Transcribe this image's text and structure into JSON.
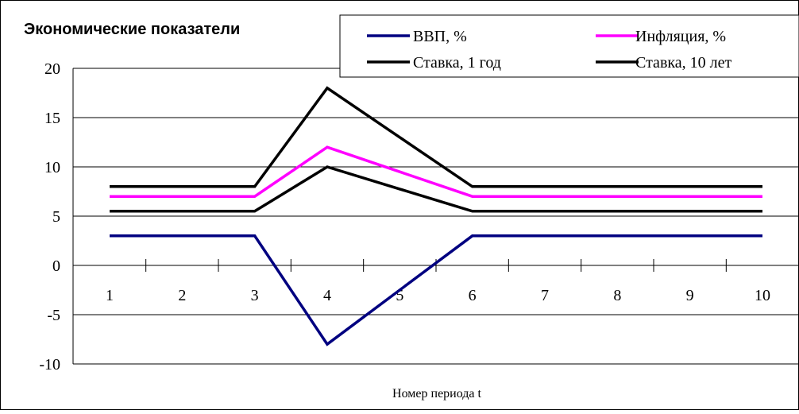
{
  "chart_data": {
    "type": "line",
    "title": "Экономические показатели",
    "xlabel": "Номер периода t",
    "ylabel": "",
    "categories": [
      "1",
      "2",
      "3",
      "4",
      "5",
      "6",
      "7",
      "8",
      "9",
      "10"
    ],
    "ylim": [
      -10,
      20
    ],
    "yticks": [
      "20",
      "15",
      "10",
      "5",
      "0",
      "-5",
      "-10"
    ],
    "grid": true,
    "legend_position": "top-right",
    "series": [
      {
        "name": "ВВП, %",
        "color": "#000080",
        "values": [
          3,
          3,
          3,
          -8,
          -2.5,
          3,
          3,
          3,
          3,
          3
        ]
      },
      {
        "name": "Инфляция, %",
        "color": "#ff00ff",
        "values": [
          7,
          7,
          7,
          12,
          9.5,
          7,
          7,
          7,
          7,
          7
        ]
      },
      {
        "name": "Ставка, 1 год",
        "color": "#000000",
        "values": [
          5.5,
          5.5,
          5.5,
          10,
          7.75,
          5.5,
          5.5,
          5.5,
          5.5,
          5.5
        ]
      },
      {
        "name": "Ставка, 10 лет",
        "color": "#000000",
        "values": [
          8,
          8,
          8,
          18,
          13,
          8,
          8,
          8,
          8,
          8
        ]
      }
    ]
  }
}
